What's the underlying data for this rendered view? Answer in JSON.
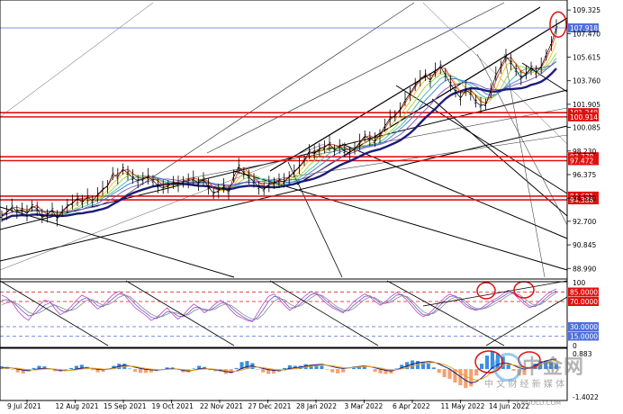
{
  "chart_data": {
    "type": "line",
    "panels": [
      {
        "name": "price",
        "y_ticks": [
          "109.325",
          "107.470",
          "105.615",
          "103.760",
          "101.905",
          "100.085",
          "98.230",
          "96.375",
          "94.520",
          "92.700",
          "90.845",
          "88.990"
        ],
        "y_tick_values": [
          109.325,
          107.47,
          105.615,
          103.76,
          101.905,
          100.085,
          98.23,
          96.375,
          94.52,
          92.7,
          90.845,
          88.99
        ],
        "ylim": [
          88.3,
          109.9
        ],
        "highlighted_levels": [
          {
            "label": "107.918",
            "value": 107.918,
            "color": "#4f6fdf"
          },
          {
            "label": "101.249",
            "value": 101.249,
            "color": "#e01010"
          },
          {
            "label": "100.914",
            "value": 100.914,
            "color": "#e01010"
          },
          {
            "label": "97.778",
            "value": 97.778,
            "color": "#e01010"
          },
          {
            "label": "97.472",
            "value": 97.472,
            "color": "#e01010"
          },
          {
            "label": "94.681",
            "value": 94.681,
            "color": "#e01010"
          },
          {
            "label": "94.388",
            "value": 94.388,
            "color": "#e01010"
          }
        ],
        "series": [
          {
            "values": [
              93.1,
              93.4,
              93.8,
              93.5,
              93.6,
              93.3,
              93.9,
              93.7,
              93.0,
              93.2,
              93.6,
              92.9,
              93.5,
              93.9,
              94.1,
              94.5,
              94.2,
              94.6,
              94.3,
              94.8,
              95.2,
              95.5,
              96.4,
              96.2,
              96.8,
              96.5,
              96.1,
              95.9,
              96.0,
              96.2,
              95.9,
              95.5,
              95.3,
              95.5,
              95.7,
              95.6,
              95.8,
              95.9,
              96.0,
              95.7,
              96.0,
              95.4,
              94.9,
              95.1,
              95.4,
              95.0,
              96.2,
              97.0,
              96.5,
              96.2,
              95.8,
              95.4,
              95.2,
              95.6,
              95.7,
              95.9,
              95.8,
              96.2,
              96.6,
              97.0,
              97.5,
              98.2,
              98.0,
              98.4,
              98.5,
              98.8,
              98.3,
              98.6,
              98.2,
              98.1,
              98.4,
              98.9,
              99.4,
              99.2,
              99.0,
              99.5,
              100.2,
              100.8,
              101.0,
              101.5,
              102.2,
              102.8,
              103.4,
              103.9,
              104.2,
              103.8,
              104.5,
              104.9,
              104.2,
              103.5,
              102.9,
              102.4,
              103.0,
              102.8,
              102.1,
              101.8,
              101.9,
              103.0,
              104.2,
              104.9,
              105.7,
              105.2,
              104.6,
              104.0,
              104.3,
              104.8,
              104.4,
              104.9,
              105.8,
              106.7,
              107.9
            ]
          }
        ]
      },
      {
        "name": "oscillator",
        "y_ticks": [
          "100",
          "85.0000",
          "70.0000",
          "30.0000",
          "15.0000",
          "0"
        ],
        "y_tick_values": [
          100,
          85,
          70,
          30,
          15,
          0
        ],
        "ylim": [
          0,
          100
        ],
        "series": [
          {
            "values": [
              80,
              76,
              68,
              55,
              46,
              40,
              52,
              64,
              72,
              70,
              58,
              49,
              54,
              62,
              72,
              80,
              76,
              66,
              58,
              64,
              74,
              82,
              86,
              80,
              70,
              60,
              54,
              48,
              40,
              44,
              52,
              60,
              50,
              42,
              48,
              58,
              66,
              60,
              52,
              58,
              66,
              72,
              66,
              56,
              48,
              44,
              40,
              38,
              52,
              66,
              78,
              82,
              74,
              64,
              56,
              62,
              72,
              80,
              86,
              82,
              74,
              66,
              60,
              56,
              52,
              60,
              70,
              76,
              82,
              78,
              70,
              64,
              70,
              78,
              84,
              80,
              72,
              62,
              52,
              46,
              50,
              58,
              68,
              76,
              82,
              78,
              70,
              62,
              58,
              56,
              60,
              66,
              72,
              76,
              82,
              88,
              82,
              74,
              66,
              60,
              64,
              72,
              80,
              86,
              90
            ]
          },
          {
            "values": [
              72,
              73,
              70,
              62,
              54,
              47,
              49,
              56,
              64,
              68,
              64,
              56,
              53,
              57,
              65,
              73,
              76,
              71,
              63,
              62,
              68,
              76,
              82,
              81,
              75,
              66,
              58,
              52,
              45,
              43,
              47,
              54,
              53,
              47,
              46,
              52,
              60,
              61,
              56,
              56,
              61,
              67,
              68,
              61,
              53,
              47,
              42,
              39,
              45,
              57,
              70,
              78,
              77,
              69,
              60,
              60,
              66,
              74,
              81,
              83,
              78,
              70,
              63,
              58,
              54,
              56,
              64,
              71,
              78,
              79,
              74,
              67,
              67,
              73,
              80,
              81,
              76,
              67,
              57,
              49,
              48,
              53,
              62,
              71,
              78,
              79,
              74,
              66,
              60,
              57,
              58,
              62,
              68,
              73,
              78,
              84,
              84,
              78,
              70,
              63,
              62,
              67,
              75,
              82,
              87
            ]
          },
          {
            "values": [
              65,
              68,
              69,
              66,
              60,
              53,
              50,
              52,
              57,
              62,
              64,
              61,
              57,
              56,
              59,
              66,
              72,
              73,
              68,
              64,
              65,
              70,
              77,
              80,
              78,
              71,
              63,
              56,
              50,
              46,
              46,
              50,
              53,
              51,
              48,
              49,
              55,
              59,
              58,
              56,
              58,
              63,
              66,
              64,
              58,
              51,
              46,
              42,
              42,
              49,
              60,
              70,
              75,
              73,
              66,
              62,
              63,
              69,
              76,
              81,
              80,
              74,
              67,
              61,
              57,
              55,
              59,
              66,
              73,
              77,
              76,
              70,
              67,
              69,
              75,
              79,
              78,
              71,
              62,
              54,
              50,
              51,
              57,
              65,
              73,
              77,
              76,
              70,
              63,
              59,
              58,
              60,
              64,
              69,
              74,
              80,
              83,
              81,
              75,
              68,
              64,
              65,
              71,
              78,
              84
            ]
          }
        ]
      },
      {
        "name": "macd",
        "y_ticks": [
          "0.883",
          "-1.4022"
        ],
        "y_tick_values": [
          0.883,
          -1.4022
        ],
        "ylim": [
          -1.4022,
          0.883
        ],
        "series": [
          {
            "values": [
              0.1,
              0.12,
              0.08,
              0.0,
              -0.08,
              -0.1,
              -0.05,
              0.02,
              0.05,
              0.03,
              -0.04,
              -0.1,
              -0.12,
              -0.08,
              0.0,
              0.08,
              0.1,
              0.05,
              -0.02,
              -0.05,
              0.0,
              0.1,
              0.22,
              0.3,
              0.25,
              0.15,
              0.05,
              -0.02,
              -0.06,
              -0.08,
              -0.05,
              0.0,
              0.03,
              0.0,
              -0.1,
              -0.15,
              -0.08,
              0.02,
              0.05,
              0.0,
              -0.05,
              -0.1,
              -0.2,
              -0.25,
              -0.15,
              0.05,
              0.2,
              0.25,
              0.15,
              0.05,
              -0.05,
              -0.1,
              -0.12,
              -0.05,
              0.05,
              0.1,
              0.15,
              0.25,
              0.3,
              0.35,
              0.38,
              0.3,
              0.2,
              0.1,
              0.05,
              0.1,
              0.15,
              0.2,
              0.25,
              0.2,
              0.1,
              0.0,
              -0.1,
              -0.15,
              -0.05,
              0.1,
              0.25,
              0.4,
              0.5,
              0.55,
              0.6,
              0.55,
              0.4,
              0.2,
              0.0,
              -0.3,
              -0.6,
              -0.9,
              -1.1,
              -1.0,
              -0.7,
              -0.3,
              0.1,
              0.35,
              0.5,
              0.45,
              0.3,
              0.1,
              0.0,
              0.1,
              0.3,
              0.5,
              0.65,
              0.75,
              0.8
            ]
          },
          {
            "values": [
              0.05,
              0.08,
              0.09,
              0.06,
              0.0,
              -0.05,
              -0.07,
              -0.04,
              0.0,
              0.02,
              0.0,
              -0.05,
              -0.09,
              -0.1,
              -0.06,
              0.0,
              0.06,
              0.07,
              0.04,
              0.0,
              -0.01,
              0.04,
              0.12,
              0.2,
              0.24,
              0.2,
              0.12,
              0.05,
              0.0,
              -0.04,
              -0.05,
              -0.03,
              0.0,
              0.01,
              -0.04,
              -0.09,
              -0.09,
              -0.04,
              0.01,
              0.02,
              -0.01,
              -0.05,
              -0.11,
              -0.17,
              -0.17,
              -0.08,
              0.05,
              0.14,
              0.16,
              0.11,
              0.04,
              -0.02,
              -0.07,
              -0.07,
              -0.02,
              0.04,
              0.09,
              0.16,
              0.22,
              0.27,
              0.32,
              0.31,
              0.26,
              0.18,
              0.11,
              0.1,
              0.12,
              0.16,
              0.2,
              0.2,
              0.15,
              0.08,
              -0.01,
              -0.07,
              -0.06,
              0.02,
              0.12,
              0.24,
              0.35,
              0.43,
              0.5,
              0.52,
              0.47,
              0.35,
              0.18,
              -0.05,
              -0.3,
              -0.55,
              -0.78,
              -0.88,
              -0.8,
              -0.55,
              -0.22,
              0.07,
              0.27,
              0.36,
              0.33,
              0.22,
              0.11,
              0.1,
              0.2,
              0.35,
              0.5,
              0.62,
              0.71
            ]
          }
        ],
        "histogram": [
          0.05,
          0.04,
          -0.01,
          -0.06,
          -0.08,
          -0.05,
          0.02,
          0.06,
          0.05,
          0.01,
          -0.04,
          -0.05,
          -0.03,
          0.02,
          0.06,
          0.08,
          0.04,
          -0.02,
          -0.06,
          -0.05,
          0.01,
          0.06,
          0.1,
          0.1,
          0.01,
          -0.05,
          -0.07,
          -0.07,
          -0.06,
          -0.04,
          0.0,
          0.03,
          0.03,
          -0.01,
          -0.06,
          -0.06,
          0.01,
          0.06,
          0.04,
          -0.02,
          -0.04,
          -0.05,
          -0.09,
          -0.08,
          0.02,
          0.13,
          0.15,
          0.11,
          -0.01,
          -0.06,
          -0.09,
          -0.08,
          -0.05,
          0.02,
          0.07,
          0.06,
          0.06,
          0.09,
          0.08,
          0.08,
          0.06,
          -0.01,
          -0.06,
          -0.08,
          -0.06,
          0.0,
          0.03,
          0.04,
          0.05,
          0.0,
          -0.05,
          -0.08,
          -0.09,
          -0.08,
          0.01,
          0.08,
          0.13,
          0.16,
          0.15,
          0.12,
          0.1,
          0.03,
          -0.07,
          -0.15,
          -0.18,
          -0.25,
          -0.3,
          -0.35,
          -0.32,
          -0.12,
          0.1,
          0.25,
          0.32,
          0.28,
          0.23,
          0.09,
          -0.03,
          -0.12,
          -0.11,
          0.0,
          0.1,
          0.15,
          0.15,
          0.13,
          0.09
        ]
      }
    ],
    "x_tick_labels": [
      "9 Jul 2021",
      "12 Aug 2021",
      "15 Sep 2021",
      "19 Oct 2021",
      "22 Nov 2021",
      "27 Dec 2021",
      "28 Jan 2022",
      "3 Mar 2022",
      "6 Apr 2022",
      "11 May 2022",
      "14 Jun 2022"
    ],
    "grid": false,
    "colors": {
      "price_line": "#000000",
      "ma_fast": "#e23a2a",
      "ma_mid": "#1f6fd0",
      "ma_slow": "#1c1c7a",
      "circle": "#e01010",
      "histogram_pos": "#3b8fe0",
      "histogram_neg": "#f4a070",
      "signal": "#f0a020"
    }
  },
  "watermark": {
    "logo_text": "中金网",
    "sub_text": "中 文 财 经 新 媒 体",
    "url": "CNGOLD.COM"
  }
}
